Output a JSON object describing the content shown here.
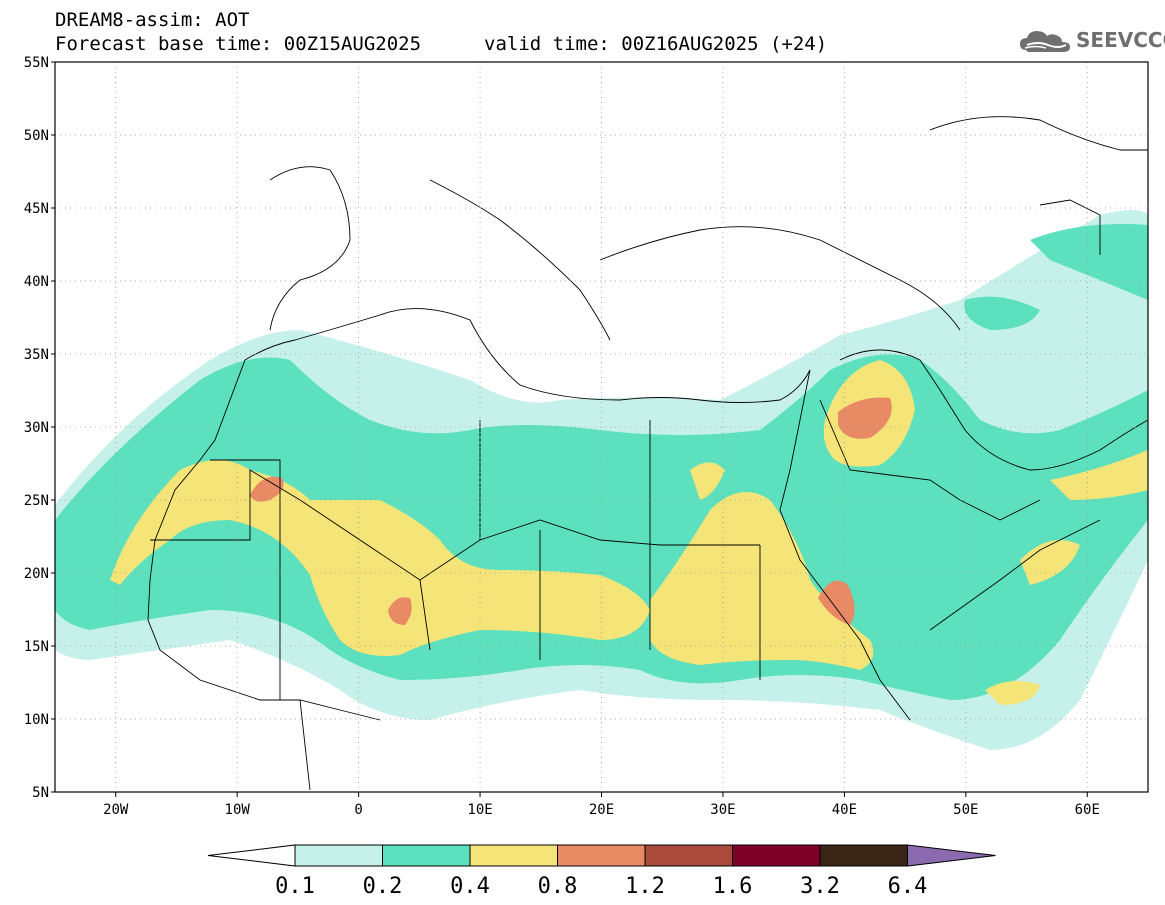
{
  "title": {
    "model": "DREAM8-assim: AOT",
    "base_time": "Forecast base time: 00Z15AUG2025",
    "valid_time": "valid time: 00Z16AUG2025 (+24)"
  },
  "logo": {
    "text": "SEEVCCC",
    "icon": "cloud-icon"
  },
  "map": {
    "lat_labels": [
      "55N",
      "50N",
      "45N",
      "40N",
      "35N",
      "30N",
      "25N",
      "20N",
      "15N",
      "10N",
      "5N"
    ],
    "lon_labels": [
      "20W",
      "10W",
      "0",
      "10E",
      "20E",
      "30E",
      "40E",
      "50E",
      "60E"
    ],
    "lat_range": [
      5,
      55
    ],
    "lon_range": [
      -25,
      65
    ],
    "grid": true,
    "field": "aerosol optical thickness"
  },
  "colorbar": {
    "thresholds": [
      "0.1",
      "0.2",
      "0.4",
      "0.8",
      "1.2",
      "1.6",
      "3.2",
      "6.4"
    ],
    "colors": [
      "#c6f1ea",
      "#5ce0bd",
      "#f5e477",
      "#e88a64",
      "#a94a3c",
      "#7d0028",
      "#3a2415",
      "#8c6ab0"
    ],
    "under_color": "#ffffff"
  }
}
